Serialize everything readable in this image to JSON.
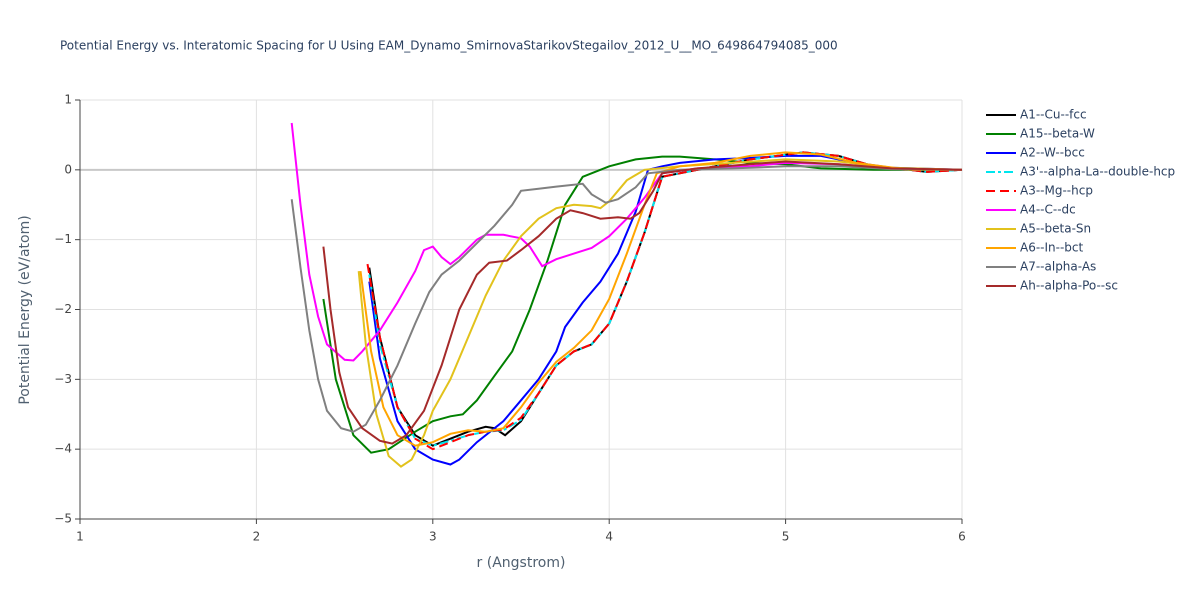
{
  "chart_data": {
    "type": "line",
    "title": "Potential Energy vs. Interatomic Spacing for U Using EAM_Dynamo_SmirnovaStarikovStegailov_2012_U__MO_649864794085_000",
    "x_label": "r (Angstrom)",
    "y_label": "Potential Energy (eV/atom)",
    "xlim": [
      1,
      6
    ],
    "xticks": [
      1,
      2,
      3,
      4,
      5,
      6
    ],
    "ylim": [
      -5,
      1
    ],
    "yticks": [
      1,
      0,
      {
        "value": -1,
        "label": "−1"
      },
      {
        "value": -2,
        "label": "−2"
      },
      {
        "value": -3,
        "label": "−3"
      },
      {
        "value": -4,
        "label": "−4"
      },
      {
        "value": -5,
        "label": "−5"
      }
    ],
    "grid": true,
    "series": [
      {
        "name": "A1--Cu--fcc",
        "color": "#000000",
        "dash": "solid",
        "x": [
          2.64,
          2.7,
          2.8,
          2.9,
          3.0,
          3.1,
          3.2,
          3.3,
          3.35,
          3.41,
          3.5,
          3.6,
          3.7,
          3.8,
          3.9,
          4.0,
          4.1,
          4.2,
          4.3,
          4.5,
          4.8,
          5.1,
          5.3,
          5.5,
          5.7,
          5.8,
          6.0
        ],
        "values": [
          -1.4,
          -2.4,
          -3.4,
          -3.8,
          -3.95,
          -3.85,
          -3.75,
          -3.68,
          -3.7,
          -3.8,
          -3.6,
          -3.2,
          -2.8,
          -2.6,
          -2.5,
          -2.2,
          -1.6,
          -0.9,
          -0.1,
          0.0,
          0.15,
          0.25,
          0.2,
          0.05,
          0.0,
          -0.03,
          0.0
        ]
      },
      {
        "name": "A15--beta-W",
        "color": "#008000",
        "dash": "solid",
        "x": [
          2.38,
          2.45,
          2.55,
          2.65,
          2.75,
          2.9,
          3.0,
          3.1,
          3.17,
          3.25,
          3.35,
          3.45,
          3.55,
          3.65,
          3.75,
          3.85,
          4.0,
          4.15,
          4.3,
          4.4,
          4.6,
          4.8,
          5.0,
          5.2,
          5.5,
          6.0
        ],
        "values": [
          -1.85,
          -3.0,
          -3.8,
          -4.05,
          -4.0,
          -3.75,
          -3.6,
          -3.53,
          -3.5,
          -3.3,
          -2.95,
          -2.6,
          -2.0,
          -1.3,
          -0.5,
          -0.1,
          0.05,
          0.15,
          0.19,
          0.19,
          0.15,
          0.1,
          0.08,
          0.02,
          0.0,
          0.0
        ]
      },
      {
        "name": "A2--W--bcc",
        "color": "#0000ff",
        "dash": "solid",
        "x": [
          2.64,
          2.7,
          2.8,
          2.9,
          3.0,
          3.1,
          3.15,
          3.25,
          3.4,
          3.5,
          3.6,
          3.7,
          3.75,
          3.85,
          3.95,
          4.05,
          4.15,
          4.22,
          4.3,
          4.4,
          4.6,
          4.8,
          5.0,
          5.2,
          5.4,
          5.6,
          6.0
        ],
        "values": [
          -1.6,
          -2.7,
          -3.6,
          -4.0,
          -4.15,
          -4.22,
          -4.15,
          -3.9,
          -3.6,
          -3.3,
          -3.0,
          -2.6,
          -2.25,
          -1.9,
          -1.6,
          -1.2,
          -0.6,
          0.0,
          0.05,
          0.1,
          0.15,
          0.17,
          0.2,
          0.2,
          0.1,
          0.03,
          0.0
        ]
      },
      {
        "name": "A3'--alpha-La--double-hcp",
        "color": "#00e5ee",
        "dash": "dashdot",
        "x": [
          2.64,
          2.7,
          2.8,
          2.9,
          3.0,
          3.1,
          3.2,
          3.3,
          3.4,
          3.5,
          3.6,
          3.7,
          3.8,
          3.9,
          4.0,
          4.1,
          4.2,
          4.3,
          4.5,
          4.8,
          5.1,
          5.3,
          5.5,
          5.7,
          5.8,
          6.0
        ],
        "values": [
          -1.5,
          -2.5,
          -3.4,
          -3.85,
          -3.95,
          -3.88,
          -3.8,
          -3.75,
          -3.73,
          -3.58,
          -3.2,
          -2.8,
          -2.6,
          -2.5,
          -2.2,
          -1.6,
          -0.9,
          -0.1,
          0.0,
          0.15,
          0.25,
          0.2,
          0.05,
          0.0,
          -0.03,
          0.0
        ]
      },
      {
        "name": "A3--Mg--hcp",
        "color": "#ff0000",
        "dash": "dash",
        "x": [
          2.63,
          2.7,
          2.8,
          2.9,
          3.0,
          3.1,
          3.2,
          3.3,
          3.4,
          3.5,
          3.6,
          3.7,
          3.8,
          3.9,
          4.0,
          4.1,
          4.2,
          4.3,
          4.5,
          4.8,
          5.1,
          5.3,
          5.5,
          5.7,
          5.8,
          6.0
        ],
        "values": [
          -1.35,
          -2.4,
          -3.4,
          -3.85,
          -4.0,
          -3.9,
          -3.8,
          -3.75,
          -3.72,
          -3.55,
          -3.2,
          -2.8,
          -2.6,
          -2.5,
          -2.2,
          -1.6,
          -0.9,
          -0.1,
          0.0,
          0.15,
          0.25,
          0.2,
          0.05,
          0.0,
          -0.03,
          0.0
        ]
      },
      {
        "name": "A4--C--dc",
        "color": "#ff00ff",
        "dash": "solid",
        "x": [
          2.2,
          2.25,
          2.3,
          2.35,
          2.4,
          2.5,
          2.55,
          2.6,
          2.7,
          2.8,
          2.9,
          2.95,
          3.0,
          3.05,
          3.1,
          3.15,
          3.25,
          3.3,
          3.4,
          3.5,
          3.55,
          3.62,
          3.7,
          3.8,
          3.9,
          4.0,
          4.1,
          4.2,
          4.3,
          4.5,
          4.8,
          5.0,
          5.3,
          5.6,
          6.0
        ],
        "values": [
          0.67,
          -0.5,
          -1.5,
          -2.1,
          -2.5,
          -2.72,
          -2.73,
          -2.6,
          -2.3,
          -1.9,
          -1.45,
          -1.15,
          -1.1,
          -1.25,
          -1.35,
          -1.25,
          -1.0,
          -0.93,
          -0.93,
          -0.98,
          -1.1,
          -1.38,
          -1.28,
          -1.2,
          -1.12,
          -0.95,
          -0.7,
          -0.4,
          -0.05,
          0.02,
          0.05,
          0.1,
          0.08,
          0.02,
          0.0
        ]
      },
      {
        "name": "A5--beta-Sn",
        "color": "#e2c21c",
        "dash": "solid",
        "x": [
          2.58,
          2.62,
          2.68,
          2.75,
          2.82,
          2.88,
          2.95,
          3.0,
          3.1,
          3.2,
          3.3,
          3.4,
          3.5,
          3.6,
          3.7,
          3.8,
          3.9,
          3.95,
          4.0,
          4.1,
          4.2,
          4.4,
          4.7,
          5.0,
          5.3,
          5.6,
          6.0
        ],
        "values": [
          -1.45,
          -2.5,
          -3.5,
          -4.1,
          -4.25,
          -4.15,
          -3.8,
          -3.45,
          -3.0,
          -2.4,
          -1.8,
          -1.3,
          -0.95,
          -0.7,
          -0.55,
          -0.5,
          -0.52,
          -0.55,
          -0.45,
          -0.15,
          0.0,
          0.05,
          0.1,
          0.15,
          0.12,
          0.03,
          0.0
        ]
      },
      {
        "name": "A6--In--bct",
        "color": "#ffa500",
        "dash": "solid",
        "x": [
          2.59,
          2.65,
          2.72,
          2.8,
          2.9,
          3.0,
          3.1,
          3.2,
          3.3,
          3.4,
          3.5,
          3.6,
          3.7,
          3.8,
          3.9,
          4.0,
          4.1,
          4.2,
          4.27,
          4.4,
          4.6,
          4.8,
          5.0,
          5.2,
          5.4,
          5.7,
          6.0
        ],
        "values": [
          -1.45,
          -2.6,
          -3.4,
          -3.8,
          -3.95,
          -3.9,
          -3.78,
          -3.73,
          -3.75,
          -3.7,
          -3.4,
          -3.05,
          -2.75,
          -2.55,
          -2.3,
          -1.85,
          -1.2,
          -0.5,
          -0.05,
          0.05,
          0.1,
          0.2,
          0.25,
          0.22,
          0.1,
          0.0,
          0.0
        ]
      },
      {
        "name": "A7--alpha-As",
        "color": "#808080",
        "dash": "solid",
        "x": [
          2.2,
          2.25,
          2.3,
          2.35,
          2.4,
          2.48,
          2.55,
          2.62,
          2.7,
          2.8,
          2.9,
          2.98,
          3.05,
          3.15,
          3.25,
          3.35,
          3.45,
          3.5,
          3.6,
          3.7,
          3.85,
          3.9,
          3.98,
          4.05,
          4.15,
          4.22,
          4.4,
          4.7,
          5.0,
          5.3,
          5.6,
          6.0
        ],
        "values": [
          -0.42,
          -1.4,
          -2.3,
          -3.0,
          -3.45,
          -3.7,
          -3.75,
          -3.65,
          -3.3,
          -2.8,
          -2.2,
          -1.75,
          -1.5,
          -1.3,
          -1.05,
          -0.8,
          -0.5,
          -0.3,
          -0.27,
          -0.24,
          -0.2,
          -0.35,
          -0.47,
          -0.42,
          -0.25,
          -0.05,
          0.0,
          0.02,
          0.05,
          0.05,
          0.01,
          0.0
        ]
      },
      {
        "name": "Ah--alpha-Po--sc",
        "color": "#a52a2a",
        "dash": "solid",
        "x": [
          2.38,
          2.42,
          2.47,
          2.52,
          2.6,
          2.7,
          2.77,
          2.85,
          2.95,
          3.05,
          3.15,
          3.25,
          3.32,
          3.42,
          3.5,
          3.6,
          3.7,
          3.78,
          3.85,
          3.95,
          4.05,
          4.12,
          4.17,
          4.25,
          4.3,
          4.5,
          4.8,
          5.0,
          5.3,
          5.6,
          6.0
        ],
        "values": [
          -1.1,
          -2.0,
          -2.9,
          -3.4,
          -3.7,
          -3.88,
          -3.92,
          -3.8,
          -3.45,
          -2.8,
          -2.0,
          -1.5,
          -1.33,
          -1.3,
          -1.15,
          -0.95,
          -0.7,
          -0.58,
          -0.62,
          -0.7,
          -0.68,
          -0.7,
          -0.62,
          -0.3,
          -0.05,
          0.02,
          0.08,
          0.12,
          0.08,
          0.02,
          0.0
        ]
      }
    ]
  }
}
